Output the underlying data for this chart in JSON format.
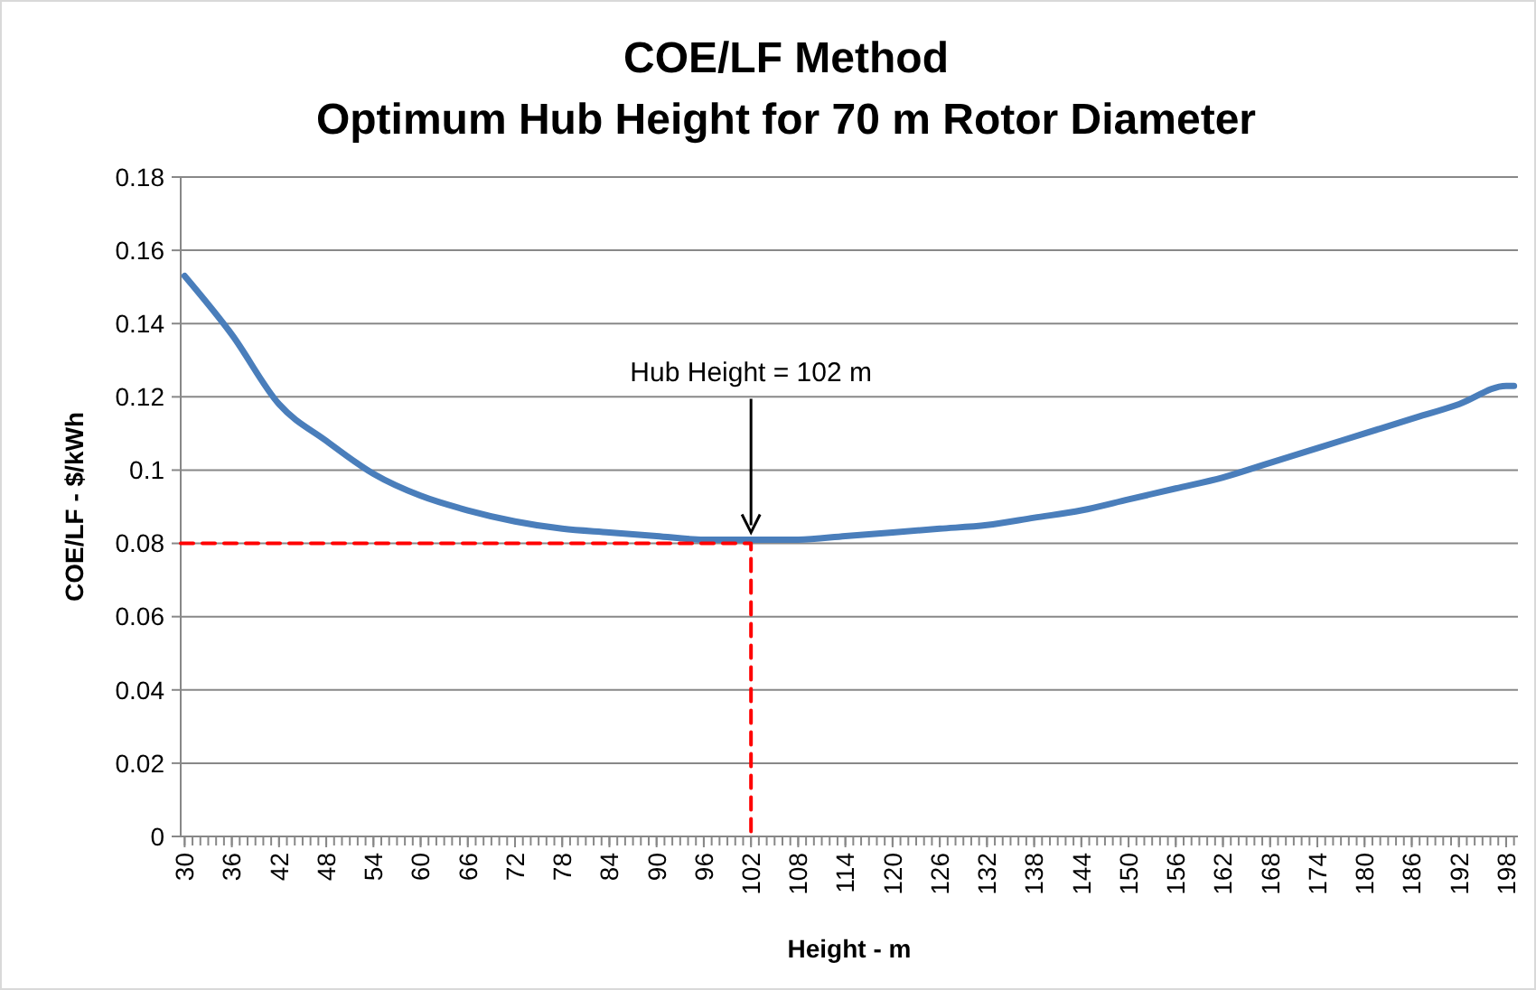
{
  "chart_data": {
    "type": "line",
    "title": "COE/LF Method",
    "subtitle": "Optimum Hub Height for 70 m Rotor Diameter",
    "xlabel": "Height - m",
    "ylabel": "COE/LF - $/kWh",
    "xlim": [
      29.5,
      199.5
    ],
    "xticks": [
      30,
      36,
      42,
      48,
      54,
      60,
      66,
      72,
      78,
      84,
      90,
      96,
      102,
      108,
      114,
      120,
      126,
      132,
      138,
      144,
      150,
      156,
      162,
      168,
      174,
      180,
      186,
      192,
      198
    ],
    "ylim": [
      0,
      0.18
    ],
    "yticks": [
      0,
      0.02,
      0.04,
      0.06,
      0.08,
      0.1,
      0.12,
      0.14,
      0.16,
      0.18
    ],
    "grid": "y",
    "series": [
      {
        "color": "#4a7ebb",
        "line_style": "solid",
        "x": [
          30,
          36,
          42,
          48,
          54,
          60,
          66,
          72,
          78,
          84,
          90,
          96,
          102,
          108,
          114,
          120,
          126,
          132,
          138,
          144,
          150,
          156,
          162,
          168,
          174,
          180,
          186,
          192,
          198,
          199
        ],
        "values": [
          0.153,
          0.137,
          0.118,
          0.108,
          0.099,
          0.093,
          0.089,
          0.086,
          0.084,
          0.083,
          0.082,
          0.081,
          0.081,
          0.081,
          0.082,
          0.083,
          0.084,
          0.085,
          0.087,
          0.089,
          0.092,
          0.095,
          0.098,
          0.102,
          0.106,
          0.11,
          0.114,
          0.118,
          0.123,
          0.123
        ]
      },
      {
        "type": "line",
        "color": "#ff0000",
        "line_style": "dashed",
        "x": [
          29.5,
          102,
          102
        ],
        "values": [
          0.08,
          0.08,
          0
        ]
      }
    ],
    "annotations": [
      {
        "text": "Hub Height = 102 m",
        "x": 102,
        "y": 0.081
      }
    ]
  }
}
